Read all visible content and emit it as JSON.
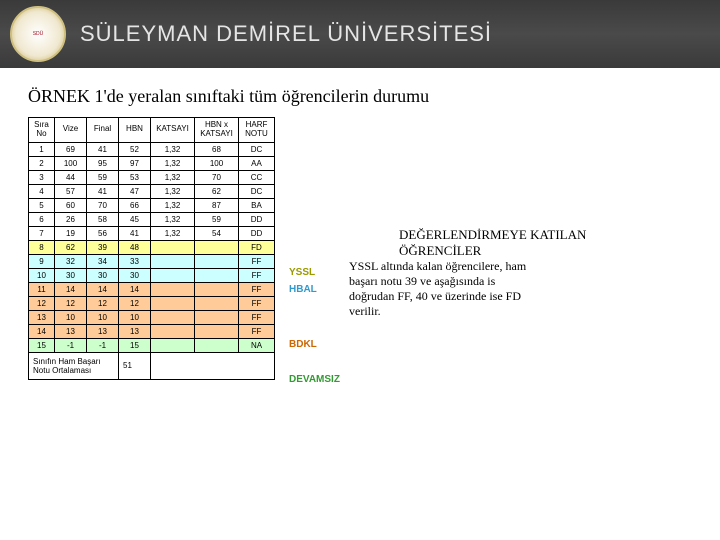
{
  "header": {
    "university": "SÜLEYMAN DEMİREL ÜNİVERSİTESİ",
    "logo_text": "SDÜ"
  },
  "title": "ÖRNEK 1'de yeralan sınıftaki tüm öğrencilerin durumu",
  "table": {
    "headers": [
      "Sıra No",
      "Vize",
      "Final",
      "HBN",
      "KATSAYI",
      "HBN x KATSAYI",
      "HARF NOTU"
    ],
    "rows": [
      {
        "cells": [
          "1",
          "69",
          "41",
          "52",
          "1,32",
          "68",
          "DC"
        ],
        "cat": ""
      },
      {
        "cells": [
          "2",
          "100",
          "95",
          "97",
          "1,32",
          "100",
          "AA"
        ],
        "cat": ""
      },
      {
        "cells": [
          "3",
          "44",
          "59",
          "53",
          "1,32",
          "70",
          "CC"
        ],
        "cat": ""
      },
      {
        "cells": [
          "4",
          "57",
          "41",
          "47",
          "1,32",
          "62",
          "DC"
        ],
        "cat": ""
      },
      {
        "cells": [
          "5",
          "60",
          "70",
          "66",
          "1,32",
          "87",
          "BA"
        ],
        "cat": ""
      },
      {
        "cells": [
          "6",
          "26",
          "58",
          "45",
          "1,32",
          "59",
          "DD"
        ],
        "cat": ""
      },
      {
        "cells": [
          "7",
          "19",
          "56",
          "41",
          "1,32",
          "54",
          "DD"
        ],
        "cat": ""
      },
      {
        "cells": [
          "8",
          "62",
          "39",
          "48",
          "",
          "",
          "FD"
        ],
        "cat": "yssl"
      },
      {
        "cells": [
          "9",
          "32",
          "34",
          "33",
          "",
          "",
          "FF"
        ],
        "cat": "hbal"
      },
      {
        "cells": [
          "10",
          "30",
          "30",
          "30",
          "",
          "",
          "FF"
        ],
        "cat": "hbal"
      },
      {
        "cells": [
          "11",
          "14",
          "14",
          "14",
          "",
          "",
          "FF"
        ],
        "cat": "bdkl"
      },
      {
        "cells": [
          "12",
          "12",
          "12",
          "12",
          "",
          "",
          "FF"
        ],
        "cat": "bdkl"
      },
      {
        "cells": [
          "13",
          "10",
          "10",
          "10",
          "",
          "",
          "FF"
        ],
        "cat": "bdkl"
      },
      {
        "cells": [
          "14",
          "13",
          "13",
          "13",
          "",
          "",
          "FF"
        ],
        "cat": "bdkl"
      },
      {
        "cells": [
          "15",
          "-1",
          "-1",
          "15",
          "",
          "",
          "NA"
        ],
        "cat": "dev"
      }
    ],
    "footer_label": "Sınıfın Ham Başarı Notu Ortalaması",
    "footer_value": "51"
  },
  "note1": "DEĞERLENDİRMEYE KATILAN ÖĞRENCİLER",
  "legend": {
    "yssl": "YSSL",
    "hbal": "HBAL",
    "bdkl": "BDKL",
    "dev": "DEVAMSIZ"
  },
  "note2": "YSSL altında kalan öğrencilere, ham başarı notu 39 ve aşağısında is doğrudan FF, 40 ve üzerinde ise FD verilir.",
  "colors": {
    "yssl": "#ffff99",
    "hbal": "#ccffff",
    "bdkl": "#ffcc99",
    "dev": "#ccffcc"
  }
}
